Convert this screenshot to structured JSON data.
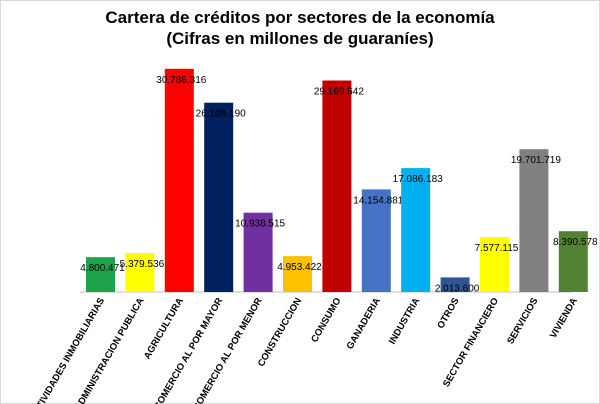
{
  "chart_data": {
    "type": "bar",
    "title": "Cartera de créditos por sectores de la economía",
    "subtitle": "(Cifras en millones de guaraníes)",
    "xlabel": "",
    "ylabel": "",
    "ylim": [
      0,
      32000000
    ],
    "grid": false,
    "categories": [
      "ACTIVIDADES INMOBILIARIAS",
      "ADMINISTRACION PUBLICA",
      "AGRICULTURA",
      "COMERCIO AL POR MAYOR",
      "COMERCIO AL POR MENOR",
      "CONSTRUCCION",
      "CONSUMO",
      "GANADERIA",
      "INDUSTRIA",
      "OTROS",
      "SECTOR FINANCIERO",
      "SERVICIOS",
      "VIVIENDA"
    ],
    "values": [
      4800471,
      5379536,
      30786316,
      26108190,
      10938515,
      4953422,
      29169642,
      14154881,
      17086183,
      2013600,
      7577115,
      19701719,
      8390578
    ],
    "value_labels": [
      "4.800.471",
      "5.379.536",
      "30.786.316",
      "26.108.190",
      "10.938.515",
      "4.953.422",
      "29.169.642",
      "14.154.881",
      "17.086.183",
      "2.013.600",
      "7.577.115",
      "19.701.719",
      "8.390.578"
    ],
    "colors": [
      "#1fa34a",
      "#ffff00",
      "#ff0000",
      "#002060",
      "#7030a0",
      "#ffc000",
      "#c00000",
      "#4472c4",
      "#00b0f0",
      "#2f5597",
      "#ffff00",
      "#808080",
      "#548235"
    ]
  }
}
